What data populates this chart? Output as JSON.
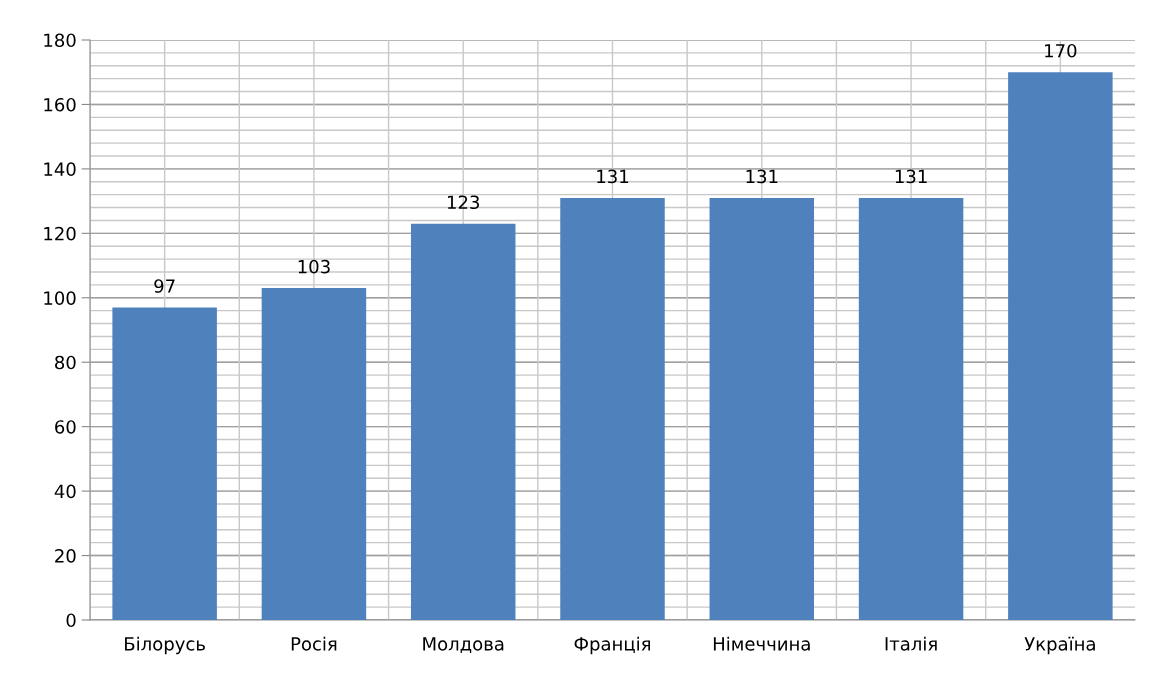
{
  "chart_data": {
    "type": "bar",
    "categories": [
      "Білорусь",
      "Росія",
      "Молдова",
      "Франція",
      "Німеччина",
      "Італія",
      "Україна"
    ],
    "values": [
      97,
      103,
      123,
      131,
      131,
      131,
      170
    ],
    "color": "#4f81bd",
    "ylim": [
      0,
      180
    ],
    "yticks": [
      0,
      20,
      40,
      60,
      80,
      100,
      120,
      140,
      160,
      180
    ],
    "grid": true,
    "data_labels": true
  }
}
